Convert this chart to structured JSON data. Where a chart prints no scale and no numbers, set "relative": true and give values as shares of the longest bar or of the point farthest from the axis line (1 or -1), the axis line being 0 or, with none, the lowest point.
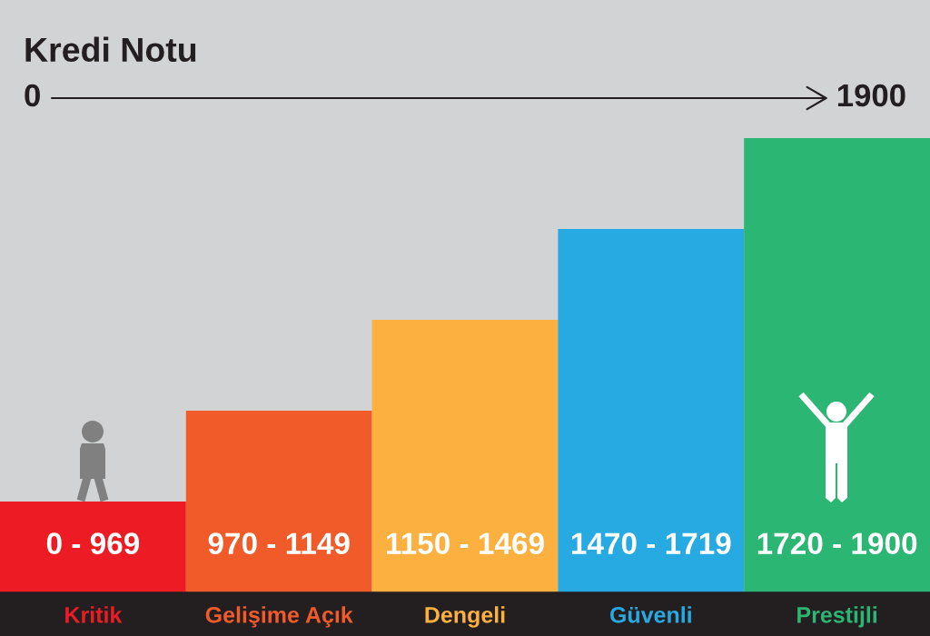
{
  "chart_data": {
    "type": "bar",
    "title": "Kredi Notu",
    "annotations": [
      "0",
      "1900",
      "0 - 969",
      "970 - 1149",
      "1150 - 1469",
      "1470 - 1719",
      "1720 - 1900"
    ],
    "categories": [
      "Kritik",
      "Gelişime Açık",
      "Dengeli",
      "Güvenli",
      "Prestijli"
    ],
    "values": [
      0.2,
      0.4,
      0.6,
      0.8,
      1
    ],
    "colors": [
      "#ed1c24",
      "#f15a29",
      "#fbb040",
      "#27a9e1",
      "#2bb673"
    ],
    "relative": true
  }
}
